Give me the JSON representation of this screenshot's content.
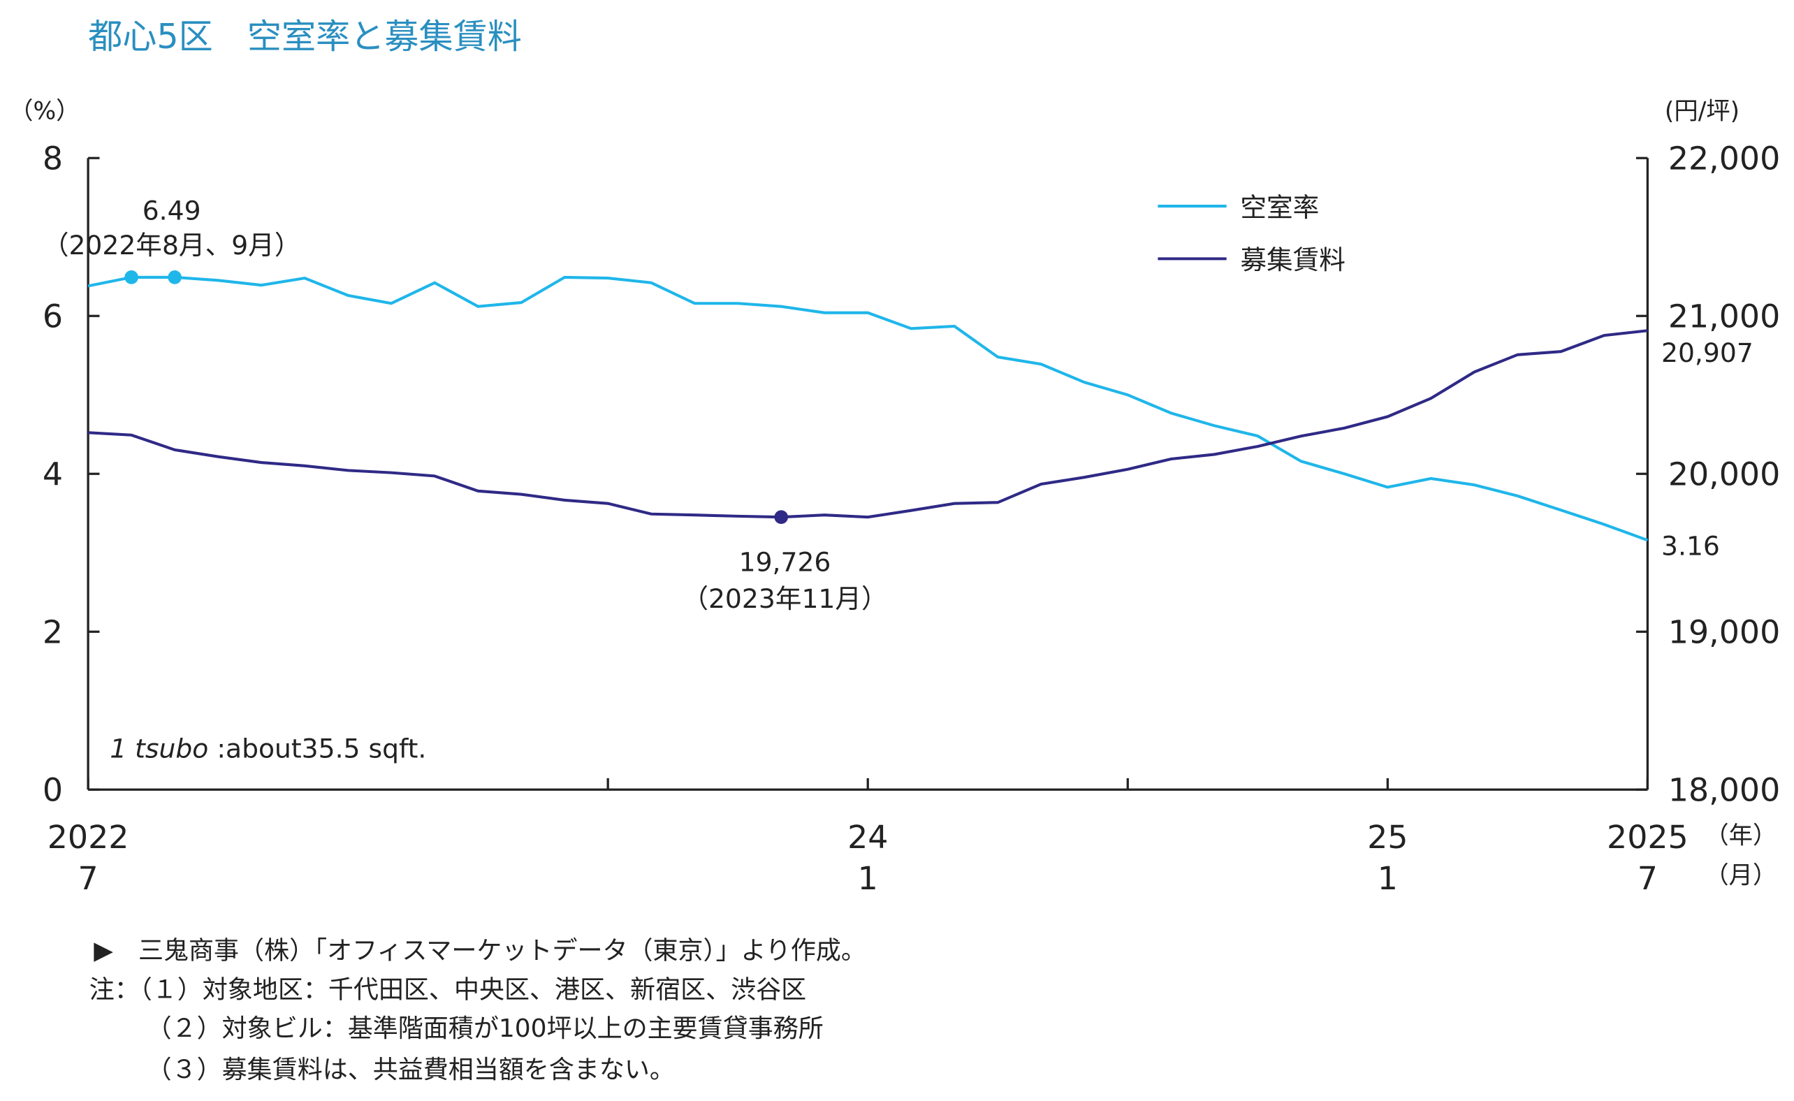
{
  "title": "都心5区　空室率と募集賃料",
  "colors": {
    "title": "#2a8fc0",
    "vacancy": "#1fb6ea",
    "rent": "#2f2a86"
  },
  "chart_data": {
    "type": "line",
    "title": "都心5区　空室率と募集賃料",
    "left_axis": {
      "unit": "（%）",
      "range": [
        0,
        8
      ],
      "ticks": [
        "0",
        "2",
        "4",
        "6",
        "8"
      ]
    },
    "right_axis": {
      "unit": "(円/坪)",
      "range": [
        18000,
        22000
      ],
      "ticks": [
        "18,000",
        "19,000",
        "20,000",
        "21,000",
        "22,000"
      ]
    },
    "x_axis": {
      "start": "2022-07",
      "end": "2025-07",
      "frequency": "monthly",
      "labels": [
        {
          "month": "2022-07",
          "year": "2022",
          "mon": "7"
        },
        {
          "month": "2024-01",
          "year": "24",
          "mon": "1"
        },
        {
          "month": "2025-01",
          "year": "25",
          "mon": "1"
        },
        {
          "month": "2025-07",
          "year": "2025",
          "mon": "7"
        }
      ],
      "year_unit": "（年）",
      "month_unit": "（月）"
    },
    "legend": {
      "placement": "top-right",
      "entries": [
        "空室率",
        "募集賃料"
      ]
    },
    "series": [
      {
        "name": "空室率",
        "axis": "left",
        "values": [
          6.38,
          6.49,
          6.49,
          6.45,
          6.39,
          6.48,
          6.26,
          6.16,
          6.42,
          6.12,
          6.17,
          6.49,
          6.48,
          6.42,
          6.16,
          6.16,
          6.12,
          6.04,
          6.04,
          5.84,
          5.87,
          5.48,
          5.39,
          5.16,
          5.0,
          4.77,
          4.61,
          4.48,
          4.16,
          4.0,
          3.83,
          3.94,
          3.86,
          3.72,
          3.54,
          3.36,
          3.16
        ]
      },
      {
        "name": "募集賃料",
        "axis": "right",
        "values": [
          20261,
          20246,
          20152,
          20109,
          20072,
          20051,
          20022,
          20007,
          19986,
          19891,
          19870,
          19833,
          19812,
          19746,
          19739,
          19732,
          19726,
          19739,
          19726,
          19768,
          19812,
          19819,
          19935,
          19978,
          20029,
          20094,
          20123,
          20174,
          20239,
          20290,
          20362,
          20478,
          20645,
          20754,
          20775,
          20877,
          20907
        ]
      }
    ],
    "annotations": {
      "vacancy_peak": {
        "value": "6.49",
        "label": "（2022年8月、9月）"
      },
      "rent_low": {
        "value": "19,726",
        "label": "（2023年11月）"
      },
      "vacancy_last": "3.16",
      "rent_last": "20,907",
      "unit_note_italic": "1 tsubo",
      "unit_note": " :about35.5 sqft."
    }
  },
  "notes": [
    "▶　三鬼商事（株）「オフィスマーケットデータ（東京）」より作成。",
    "注：（１）対象地区：千代田区、中央区、港区、新宿区、渋谷区",
    "（２）対象ビル：基準階面積が100坪以上の主要賃貸事務所",
    "（３）募集賃料は、共益費相当額を含まない。"
  ]
}
